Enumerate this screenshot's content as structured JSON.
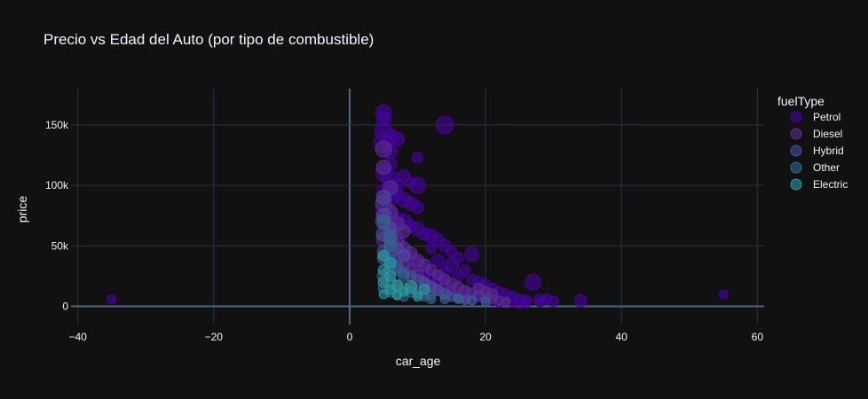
{
  "chart_data": {
    "type": "scatter",
    "title": "Precio vs Edad del Auto (por tipo de combustible)",
    "xlabel": "car_age",
    "ylabel": "price",
    "xlim": [
      -41,
      61
    ],
    "ylim": [
      -15000,
      180000
    ],
    "x_ticks": [
      -40,
      -20,
      0,
      20,
      40,
      60
    ],
    "x_tick_labels": [
      "−40",
      "−20",
      "0",
      "20",
      "40",
      "60"
    ],
    "y_ticks": [
      0,
      50000,
      100000,
      150000
    ],
    "y_tick_labels": [
      "0",
      "50k",
      "100k",
      "150k"
    ],
    "grid": true,
    "legend_position": "right",
    "legend_title": "fuelType",
    "series": [
      {
        "name": "Petrol",
        "color": "#46039f",
        "points": [
          [
            5,
            160000,
            9
          ],
          [
            5,
            155000,
            8
          ],
          [
            5,
            145000,
            10
          ],
          [
            6,
            140000,
            9
          ],
          [
            5,
            135000,
            11
          ],
          [
            6,
            128000,
            8
          ],
          [
            7,
            138000,
            8
          ],
          [
            14,
            150000,
            10
          ],
          [
            10,
            123000,
            6
          ],
          [
            6,
            118000,
            7
          ],
          [
            5,
            110000,
            9
          ],
          [
            6,
            105000,
            10
          ],
          [
            7,
            100000,
            8
          ],
          [
            8,
            108000,
            7
          ],
          [
            9,
            102000,
            6
          ],
          [
            10,
            100000,
            9
          ],
          [
            5,
            95000,
            8
          ],
          [
            6,
            90000,
            9
          ],
          [
            7,
            92000,
            7
          ],
          [
            8,
            88000,
            8
          ],
          [
            9,
            85000,
            8
          ],
          [
            10,
            82000,
            7
          ],
          [
            5,
            80000,
            9
          ],
          [
            6,
            76000,
            8
          ],
          [
            7,
            72000,
            8
          ],
          [
            8,
            70000,
            9
          ],
          [
            9,
            66000,
            7
          ],
          [
            10,
            64000,
            8
          ],
          [
            11,
            60000,
            7
          ],
          [
            12,
            58000,
            8
          ],
          [
            13,
            55000,
            7
          ],
          [
            14,
            50000,
            7
          ],
          [
            12,
            48000,
            6
          ],
          [
            15,
            45000,
            6
          ],
          [
            18,
            43000,
            8
          ],
          [
            16,
            40000,
            6
          ],
          [
            13,
            38000,
            7
          ],
          [
            15,
            34000,
            8
          ],
          [
            17,
            30000,
            6
          ],
          [
            14,
            28000,
            7
          ],
          [
            16,
            25000,
            6
          ],
          [
            18,
            22000,
            6
          ],
          [
            19,
            20000,
            7
          ],
          [
            20,
            18000,
            6
          ],
          [
            21,
            15000,
            6
          ],
          [
            22,
            12000,
            6
          ],
          [
            23,
            10000,
            6
          ],
          [
            24,
            8000,
            6
          ],
          [
            25,
            6000,
            6
          ],
          [
            26,
            5000,
            6
          ],
          [
            27,
            20000,
            9
          ],
          [
            28,
            5000,
            7
          ],
          [
            29,
            6000,
            6
          ],
          [
            30,
            4000,
            6
          ],
          [
            34,
            4500,
            7
          ],
          [
            24,
            3000,
            5
          ],
          [
            26,
            2500,
            5
          ],
          [
            28,
            3500,
            5
          ],
          [
            22,
            3000,
            5
          ],
          [
            20,
            4000,
            5
          ],
          [
            19,
            8000,
            6
          ],
          [
            17,
            12000,
            6
          ],
          [
            15,
            14000,
            7
          ],
          [
            13,
            18000,
            7
          ],
          [
            11,
            22000,
            7
          ],
          [
            -35,
            6000,
            5
          ],
          [
            55,
            10000,
            5
          ],
          [
            6,
            62000,
            9
          ],
          [
            7,
            55000,
            9
          ],
          [
            8,
            45000,
            8
          ],
          [
            9,
            40000,
            8
          ],
          [
            10,
            35000,
            8
          ],
          [
            11,
            30000,
            7
          ],
          [
            12,
            25000,
            7
          ],
          [
            13,
            22000,
            7
          ],
          [
            14,
            18000,
            6
          ],
          [
            15,
            15000,
            6
          ],
          [
            16,
            10000,
            6
          ],
          [
            17,
            8000,
            6
          ],
          [
            18,
            6000,
            6
          ],
          [
            21,
            5000,
            6
          ],
          [
            23,
            4000,
            5
          ],
          [
            25,
            2000,
            5
          ]
        ]
      },
      {
        "name": "Diesel",
        "color": "#5c2d91",
        "points": [
          [
            5,
            130000,
            9
          ],
          [
            5,
            115000,
            8
          ],
          [
            6,
            98000,
            8
          ],
          [
            5,
            85000,
            9
          ],
          [
            6,
            78000,
            8
          ],
          [
            7,
            68000,
            8
          ],
          [
            8,
            62000,
            7
          ],
          [
            5,
            70000,
            9
          ],
          [
            6,
            60000,
            8
          ],
          [
            7,
            52000,
            8
          ],
          [
            8,
            48000,
            7
          ],
          [
            9,
            44000,
            7
          ],
          [
            10,
            38000,
            7
          ],
          [
            11,
            34000,
            7
          ],
          [
            12,
            30000,
            6
          ],
          [
            13,
            26000,
            6
          ],
          [
            14,
            22000,
            6
          ],
          [
            15,
            19000,
            6
          ],
          [
            16,
            16000,
            6
          ],
          [
            17,
            13000,
            6
          ],
          [
            18,
            11000,
            6
          ],
          [
            19,
            9000,
            6
          ],
          [
            20,
            7000,
            6
          ],
          [
            21,
            6000,
            5
          ],
          [
            22,
            5000,
            5
          ],
          [
            23,
            4000,
            5
          ],
          [
            5,
            55000,
            8
          ],
          [
            6,
            45000,
            8
          ],
          [
            7,
            40000,
            7
          ],
          [
            8,
            35000,
            7
          ],
          [
            9,
            30000,
            7
          ],
          [
            10,
            25000,
            7
          ],
          [
            11,
            20000,
            6
          ],
          [
            12,
            17000,
            6
          ],
          [
            13,
            14000,
            6
          ],
          [
            14,
            11000,
            6
          ],
          [
            15,
            9000,
            6
          ],
          [
            16,
            7000,
            5
          ],
          [
            17,
            6000,
            5
          ],
          [
            19,
            15000,
            6
          ],
          [
            20,
            12000,
            6
          ],
          [
            21,
            10000,
            6
          ]
        ]
      },
      {
        "name": "Hybrid",
        "color": "#4a4f9c",
        "points": [
          [
            5,
            90000,
            8
          ],
          [
            5,
            75000,
            8
          ],
          [
            6,
            65000,
            7
          ],
          [
            5,
            60000,
            8
          ],
          [
            6,
            55000,
            7
          ],
          [
            7,
            48000,
            7
          ],
          [
            8,
            42000,
            7
          ],
          [
            6,
            38000,
            7
          ],
          [
            7,
            33000,
            7
          ],
          [
            8,
            28000,
            6
          ],
          [
            9,
            25000,
            6
          ],
          [
            10,
            22000,
            6
          ],
          [
            11,
            19000,
            6
          ],
          [
            12,
            16000,
            6
          ],
          [
            13,
            13000,
            6
          ],
          [
            14,
            10000,
            6
          ],
          [
            15,
            8000,
            5
          ],
          [
            16,
            6000,
            5
          ],
          [
            17,
            5000,
            5
          ],
          [
            9,
            15000,
            6
          ],
          [
            10,
            12000,
            6
          ],
          [
            11,
            10000,
            5
          ],
          [
            12,
            9000,
            5
          ],
          [
            5,
            45000,
            7
          ],
          [
            6,
            30000,
            7
          ]
        ]
      },
      {
        "name": "Other",
        "color": "#31688e",
        "points": [
          [
            5,
            70000,
            7
          ],
          [
            6,
            58000,
            7
          ],
          [
            6,
            50000,
            7
          ],
          [
            5,
            40000,
            7
          ],
          [
            6,
            35000,
            7
          ],
          [
            7,
            30000,
            6
          ],
          [
            8,
            25000,
            6
          ],
          [
            5,
            25000,
            7
          ],
          [
            6,
            20000,
            6
          ],
          [
            7,
            18000,
            6
          ],
          [
            8,
            15000,
            6
          ],
          [
            9,
            12000,
            6
          ],
          [
            10,
            10000,
            5
          ],
          [
            11,
            8000,
            5
          ],
          [
            12,
            6000,
            5
          ],
          [
            5,
            15000,
            6
          ],
          [
            6,
            12000,
            6
          ],
          [
            7,
            10000,
            5
          ],
          [
            8,
            8000,
            5
          ],
          [
            16,
            7000,
            5
          ],
          [
            18,
            5000,
            5
          ],
          [
            20,
            4000,
            5
          ],
          [
            14,
            6000,
            5
          ]
        ]
      },
      {
        "name": "Electric",
        "color": "#2a9c9c",
        "points": [
          [
            5,
            42000,
            6
          ],
          [
            6,
            36000,
            6
          ],
          [
            5,
            30000,
            6
          ],
          [
            6,
            25000,
            6
          ],
          [
            5,
            20000,
            6
          ],
          [
            7,
            17000,
            6
          ],
          [
            9,
            16000,
            7
          ],
          [
            6,
            14000,
            6
          ],
          [
            8,
            12000,
            5
          ],
          [
            7,
            9000,
            5
          ],
          [
            10,
            8000,
            5
          ],
          [
            5,
            10000,
            5
          ],
          [
            11,
            14000,
            6
          ]
        ]
      }
    ]
  }
}
